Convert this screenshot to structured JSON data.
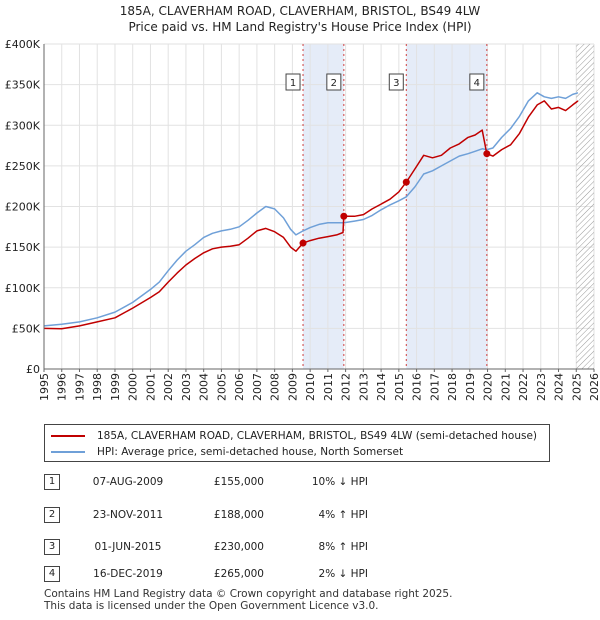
{
  "chart_data": {
    "type": "line",
    "title_line1": "185A, CLAVERHAM ROAD, CLAVERHAM, BRISTOL, BS49 4LW",
    "title_line2": "Price paid vs. HM Land Registry's House Price Index (HPI)",
    "xlim": [
      1995,
      2026
    ],
    "ylim": [
      0,
      400000
    ],
    "x_ticks": [
      1995,
      1996,
      1997,
      1998,
      1999,
      2000,
      2001,
      2002,
      2003,
      2004,
      2005,
      2006,
      2007,
      2008,
      2009,
      2010,
      2011,
      2012,
      2013,
      2014,
      2015,
      2016,
      2017,
      2018,
      2019,
      2020,
      2021,
      2022,
      2023,
      2024,
      2025,
      2026
    ],
    "y_ticks": [
      {
        "value": 0,
        "label": "£0"
      },
      {
        "value": 50000,
        "label": "£50K"
      },
      {
        "value": 100000,
        "label": "£100K"
      },
      {
        "value": 150000,
        "label": "£150K"
      },
      {
        "value": 200000,
        "label": "£200K"
      },
      {
        "value": 250000,
        "label": "£250K"
      },
      {
        "value": 300000,
        "label": "£300K"
      },
      {
        "value": 350000,
        "label": "£350K"
      },
      {
        "value": 400000,
        "label": "£400K"
      }
    ],
    "shaded_periods": [
      [
        2009.6,
        2011.9
      ],
      [
        2015.42,
        2019.96
      ]
    ],
    "future_hatch_from": 2025.0,
    "series": [
      {
        "name": "185A, CLAVERHAM ROAD, CLAVERHAM, BRISTOL, BS49 4LW (semi-detached house)",
        "color": "#c00000",
        "points": [
          [
            1995.0,
            50000
          ],
          [
            1996.0,
            49500
          ],
          [
            1997.0,
            53000
          ],
          [
            1998.0,
            58000
          ],
          [
            1999.0,
            63000
          ],
          [
            2000.0,
            75000
          ],
          [
            2001.0,
            88000
          ],
          [
            2001.5,
            95000
          ],
          [
            2002.0,
            107000
          ],
          [
            2002.5,
            118000
          ],
          [
            2003.0,
            128000
          ],
          [
            2003.5,
            136000
          ],
          [
            2004.0,
            143000
          ],
          [
            2004.5,
            148000
          ],
          [
            2005.0,
            150000
          ],
          [
            2005.5,
            151000
          ],
          [
            2006.0,
            153000
          ],
          [
            2006.5,
            161000
          ],
          [
            2007.0,
            170000
          ],
          [
            2007.5,
            173000
          ],
          [
            2008.0,
            169000
          ],
          [
            2008.5,
            162000
          ],
          [
            2008.9,
            150000
          ],
          [
            2009.2,
            145000
          ],
          [
            2009.6,
            155000
          ],
          [
            2010.0,
            158000
          ],
          [
            2010.5,
            161000
          ],
          [
            2011.0,
            163000
          ],
          [
            2011.5,
            165000
          ],
          [
            2011.85,
            168000
          ],
          [
            2011.9,
            188000
          ],
          [
            2012.5,
            188000
          ],
          [
            2013.0,
            190000
          ],
          [
            2013.5,
            197000
          ],
          [
            2014.0,
            203000
          ],
          [
            2014.5,
            209000
          ],
          [
            2015.0,
            218000
          ],
          [
            2015.42,
            230000
          ],
          [
            2015.9,
            246000
          ],
          [
            2016.4,
            263000
          ],
          [
            2016.9,
            260000
          ],
          [
            2017.4,
            263000
          ],
          [
            2017.9,
            272000
          ],
          [
            2018.4,
            277000
          ],
          [
            2018.9,
            285000
          ],
          [
            2019.3,
            288000
          ],
          [
            2019.7,
            294000
          ],
          [
            2019.96,
            265000
          ],
          [
            2020.3,
            262000
          ],
          [
            2020.8,
            270000
          ],
          [
            2021.3,
            276000
          ],
          [
            2021.8,
            290000
          ],
          [
            2022.3,
            310000
          ],
          [
            2022.8,
            325000
          ],
          [
            2023.2,
            330000
          ],
          [
            2023.6,
            320000
          ],
          [
            2024.0,
            322000
          ],
          [
            2024.4,
            318000
          ],
          [
            2024.8,
            325000
          ],
          [
            2025.1,
            330000
          ]
        ]
      },
      {
        "name": "HPI: Average price, semi-detached house, North Somerset",
        "color": "#6fa0d8",
        "points": [
          [
            1995.0,
            53000
          ],
          [
            1996.0,
            55000
          ],
          [
            1997.0,
            58000
          ],
          [
            1998.0,
            63000
          ],
          [
            1999.0,
            70000
          ],
          [
            2000.0,
            82000
          ],
          [
            2001.0,
            98000
          ],
          [
            2001.5,
            107000
          ],
          [
            2002.0,
            121000
          ],
          [
            2002.5,
            134000
          ],
          [
            2003.0,
            145000
          ],
          [
            2003.5,
            153000
          ],
          [
            2004.0,
            162000
          ],
          [
            2004.5,
            167000
          ],
          [
            2005.0,
            170000
          ],
          [
            2005.5,
            172000
          ],
          [
            2006.0,
            175000
          ],
          [
            2006.5,
            183000
          ],
          [
            2007.0,
            192000
          ],
          [
            2007.5,
            200000
          ],
          [
            2008.0,
            197000
          ],
          [
            2008.5,
            186000
          ],
          [
            2008.9,
            172000
          ],
          [
            2009.2,
            165000
          ],
          [
            2009.6,
            170000
          ],
          [
            2010.0,
            174000
          ],
          [
            2010.5,
            178000
          ],
          [
            2011.0,
            180000
          ],
          [
            2011.5,
            180000
          ],
          [
            2011.9,
            180000
          ],
          [
            2012.5,
            182000
          ],
          [
            2013.0,
            184000
          ],
          [
            2013.5,
            189000
          ],
          [
            2014.0,
            196000
          ],
          [
            2014.5,
            202000
          ],
          [
            2015.0,
            207000
          ],
          [
            2015.42,
            212000
          ],
          [
            2015.9,
            224000
          ],
          [
            2016.4,
            240000
          ],
          [
            2016.9,
            244000
          ],
          [
            2017.4,
            250000
          ],
          [
            2017.9,
            256000
          ],
          [
            2018.4,
            262000
          ],
          [
            2018.9,
            265000
          ],
          [
            2019.3,
            268000
          ],
          [
            2019.7,
            271000
          ],
          [
            2019.96,
            270000
          ],
          [
            2020.3,
            272000
          ],
          [
            2020.8,
            285000
          ],
          [
            2021.3,
            296000
          ],
          [
            2021.8,
            311000
          ],
          [
            2022.3,
            330000
          ],
          [
            2022.8,
            340000
          ],
          [
            2023.2,
            335000
          ],
          [
            2023.6,
            333000
          ],
          [
            2024.0,
            335000
          ],
          [
            2024.4,
            333000
          ],
          [
            2024.8,
            338000
          ],
          [
            2025.1,
            340000
          ]
        ]
      }
    ],
    "sales": [
      {
        "num": "1",
        "date": "07-AUG-2009",
        "x": 2009.6,
        "price": 155000,
        "price_label": "£155,000",
        "hpi": "10% ↓ HPI"
      },
      {
        "num": "2",
        "date": "23-NOV-2011",
        "x": 2011.9,
        "price": 188000,
        "price_label": "£188,000",
        "hpi": "4% ↑ HPI"
      },
      {
        "num": "3",
        "date": "01-JUN-2015",
        "x": 2015.42,
        "price": 230000,
        "price_label": "£230,000",
        "hpi": "8% ↑ HPI"
      },
      {
        "num": "4",
        "date": "16-DEC-2019",
        "x": 2019.96,
        "price": 265000,
        "price_label": "£265,000",
        "hpi": "2% ↓ HPI"
      }
    ]
  },
  "footer": {
    "line1": "Contains HM Land Registry data © Crown copyright and database right 2025.",
    "line2": "This data is licensed under the Open Government Licence v3.0."
  }
}
